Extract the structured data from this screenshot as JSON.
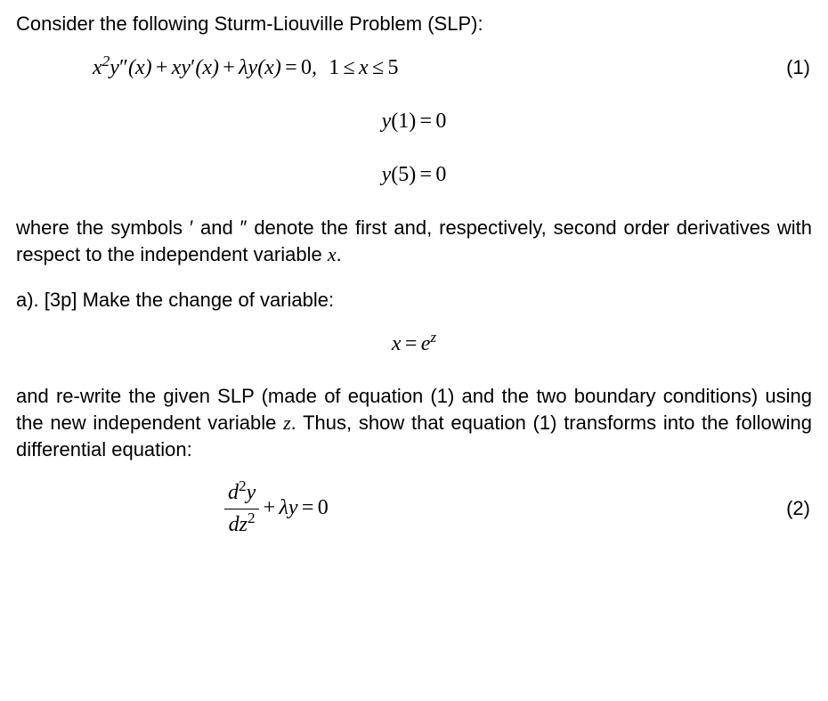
{
  "intro_text": "Consider the following Sturm-Liouville Problem (SLP):",
  "eq1": {
    "expr_html": "x<sup>2</sup>y<span class='rm'>&#8243;</span>(x)<span class='sp'></span><span class='rm'>+</span><span class='sp'></span>xy<span class='rm'>&#8242;</span>(x)<span class='sp'></span><span class='rm'>+</span><span class='sp'></span>&#955;y(x)<span class='sp'></span><span class='rm'>=</span><span class='sp'></span><span class='rm'>0</span>,<span class='spw'></span><span class='rm'>1</span><span class='sp'></span><span class='rm'>&#8804;</span><span class='sp'></span>x<span class='sp'></span><span class='rm'>&#8804;</span><span class='sp'></span><span class='rm'>5</span>",
    "number": "(1)"
  },
  "bc1_html": "y<span class='rm'>(1)</span><span class='sp'></span><span class='rm'>=</span><span class='sp'></span><span class='rm'>0</span>",
  "bc2_html": "y<span class='rm'>(5)</span><span class='sp'></span><span class='rm'>=</span><span class='sp'></span><span class='rm'>0</span>",
  "where_text_pre": "where the symbols ",
  "sym_prime": "′",
  "where_text_mid1": " and ",
  "sym_dprime": "″",
  "where_text_mid2": " denote the first and, respectively, second order derivatives with respect to the independent variable ",
  "var_x": "x",
  "where_text_end": ".",
  "part_a_label": "a). [3p] Make the change of variable:",
  "sub_eq_html": "x<span class='sp'></span><span class='rm'>=</span><span class='sp'></span>e<sup>z</sup>",
  "after_sub_pre": "and re-write the given SLP (made of equation (1) and the two boundary conditions) using the new independent variable ",
  "var_z": "z",
  "after_sub_mid": ". Thus, show that equation (1) transforms into the following differential equation:",
  "eq2": {
    "frac_num_html": "d<sup><span class='rm'>2</span></sup>y",
    "frac_den_html": "dz<sup><span class='rm'>2</span></sup>",
    "rest_html": "<span class='sp'></span><span class='rm'>+</span><span class='sp'></span>&#955;y<span class='sp'></span><span class='rm'>=</span><span class='sp'></span><span class='rm'>0</span>",
    "number": "(2)"
  },
  "colors": {
    "text": "#000000",
    "background": "#ffffff"
  },
  "typography": {
    "body_font": "Arial",
    "body_size_pt": 16,
    "math_font": "Times New Roman",
    "math_size_pt": 18
  }
}
